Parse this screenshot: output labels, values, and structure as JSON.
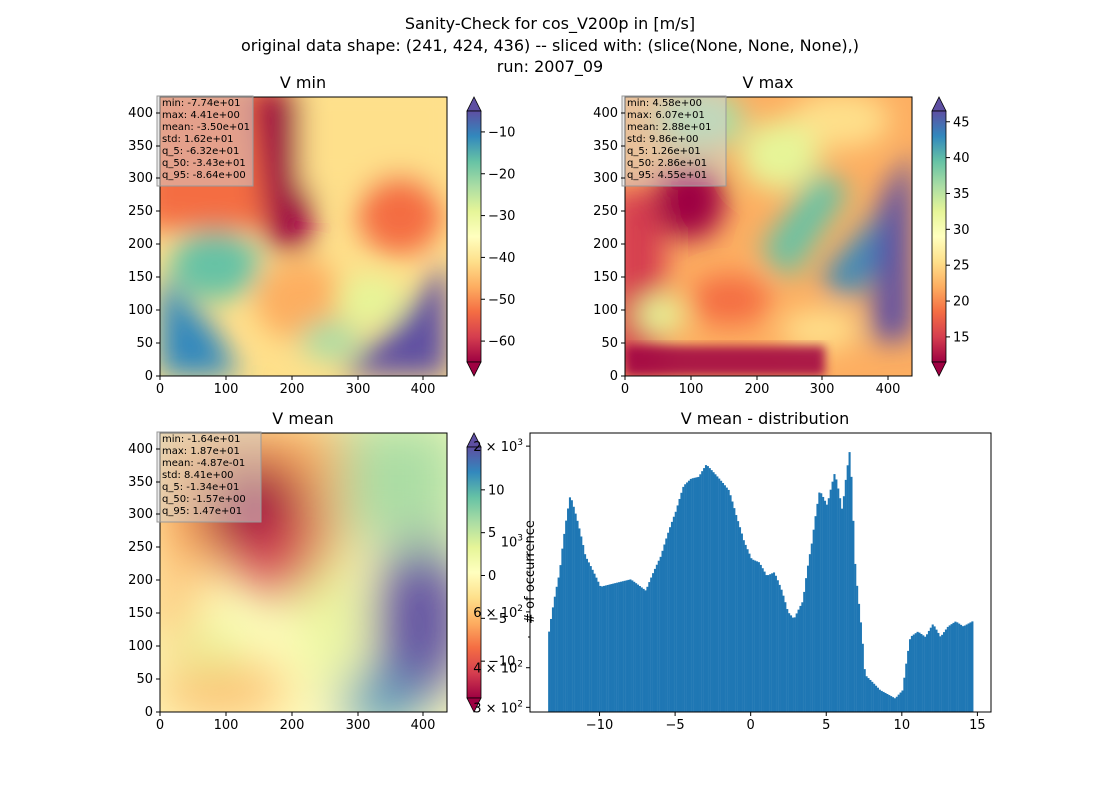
{
  "figure": {
    "title_lines": [
      "Sanity-Check for cos_V200p in [m/s]",
      "original data shape: (241, 424, 436) -- sliced with: (slice(None, None, None),)",
      "run: 2007_09"
    ]
  },
  "colormap": {
    "name": "Spectral",
    "stops": [
      "#9e0142",
      "#d53e4f",
      "#f46d43",
      "#fdae61",
      "#fee08b",
      "#ffffbf",
      "#e6f598",
      "#abdda4",
      "#66c2a5",
      "#3288bd",
      "#5e4fa2"
    ]
  },
  "chart_data": [
    {
      "type": "heatmap",
      "title": "V min",
      "xlim": [
        0,
        436
      ],
      "ylim": [
        0,
        424
      ],
      "x_ticks": [
        "0",
        "100",
        "200",
        "300",
        "400"
      ],
      "y_ticks": [
        "0",
        "50",
        "100",
        "150",
        "200",
        "250",
        "300",
        "350",
        "400"
      ],
      "colorbar": {
        "range": [
          -65,
          -5
        ],
        "extend": "both",
        "ticks": [
          "−60",
          "−50",
          "−40",
          "−30",
          "−20",
          "−10"
        ]
      },
      "stats": [
        "min: -7.74e+01",
        "max: 4.41e+00",
        "mean: -3.50e+01",
        "std: 1.62e+01",
        "q_5: -6.32e+01",
        "q_50: -3.43e+01",
        "q_95: -8.64e+00"
      ]
    },
    {
      "type": "heatmap",
      "title": "V max",
      "xlim": [
        0,
        436
      ],
      "ylim": [
        0,
        424
      ],
      "x_ticks": [
        "0",
        "100",
        "200",
        "300",
        "400"
      ],
      "y_ticks": [
        "0",
        "50",
        "100",
        "150",
        "200",
        "250",
        "300",
        "350",
        "400"
      ],
      "colorbar": {
        "range": [
          11.5,
          46.5
        ],
        "extend": "both",
        "ticks": [
          "15",
          "20",
          "25",
          "30",
          "35",
          "40",
          "45"
        ]
      },
      "stats": [
        "min: 4.58e+00",
        "max: 6.07e+01",
        "mean: 2.88e+01",
        "std: 9.86e+00",
        "q_5: 1.26e+01",
        "q_50: 2.86e+01",
        "q_95: 4.55e+01"
      ]
    },
    {
      "type": "heatmap",
      "title": "V mean",
      "xlim": [
        0,
        436
      ],
      "ylim": [
        0,
        424
      ],
      "x_ticks": [
        "0",
        "100",
        "200",
        "300",
        "400"
      ],
      "y_ticks": [
        "0",
        "50",
        "100",
        "150",
        "200",
        "250",
        "300",
        "350",
        "400"
      ],
      "colorbar": {
        "range": [
          -14.3,
          15
        ],
        "extend": "both",
        "ticks": [
          "−10",
          "−5",
          "0",
          "5",
          "10"
        ]
      },
      "stats": [
        "min: -1.64e+01",
        "max: 1.87e+01",
        "mean: -4.87e-01",
        "std: 8.41e+00",
        "q_5: -1.34e+01",
        "q_50: -1.57e+00",
        "q_95: 1.47e+01"
      ]
    },
    {
      "type": "bar",
      "title": "V mean - distribution",
      "xlabel": "",
      "ylabel": "# of occurrence",
      "xlim": [
        -14.6,
        15.9
      ],
      "ylim": [
        290,
        2200
      ],
      "yscale": "log",
      "x_ticks": [
        "−10",
        "−5",
        "0",
        "5",
        "10",
        "15"
      ],
      "y_ticks": [
        {
          "base": "3 × 10",
          "exp": "2"
        },
        {
          "base": "4 × 10",
          "exp": "2"
        },
        {
          "base": "6 × 10",
          "exp": "2"
        },
        {
          "base": "10",
          "exp": "3"
        },
        {
          "base": "2 × 10",
          "exp": "3"
        }
      ],
      "bar_color": "#1f77b4",
      "x": [
        -13.4,
        -12.7,
        -12.0,
        -11.0,
        -10.0,
        -9.0,
        -8.0,
        -7.0,
        -6.0,
        -5.0,
        -4.5,
        -4.0,
        -3.5,
        -3.0,
        -2.5,
        -2.0,
        -1.5,
        -1.0,
        -0.5,
        0.0,
        0.5,
        1.0,
        1.5,
        2.0,
        2.4,
        2.8,
        3.4,
        4.0,
        4.5,
        5.0,
        5.5,
        6.0,
        6.5,
        6.8,
        7.0,
        7.5,
        8.0,
        8.5,
        9.0,
        9.5,
        10.0,
        10.5,
        11.0,
        11.5,
        12.0,
        12.5,
        13.0,
        13.5,
        14.0,
        14.6
      ],
      "values": [
        520,
        800,
        1400,
        900,
        720,
        740,
        760,
        700,
        900,
        1250,
        1500,
        1580,
        1600,
        1750,
        1650,
        1550,
        1450,
        1200,
        1000,
        880,
        860,
        780,
        800,
        700,
        600,
        570,
        650,
        1000,
        1450,
        1300,
        1650,
        1250,
        1950,
        900,
        700,
        380,
        360,
        340,
        330,
        320,
        340,
        500,
        520,
        500,
        550,
        500,
        540,
        560,
        540,
        560
      ]
    }
  ]
}
